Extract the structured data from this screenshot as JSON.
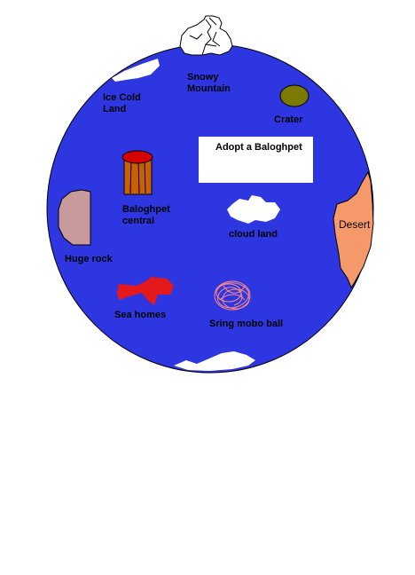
{
  "map": {
    "colors": {
      "ocean": "#2d36e0",
      "outline": "#000000",
      "snow": "#ffffff",
      "desert": "#f5996a",
      "crater": "#7b7a05",
      "rock": "#c99a9b",
      "barrel_top": "#d60000",
      "barrel_body": "#c85f0a",
      "sea_homes": "#e5191b",
      "ball": "#ff8a82"
    },
    "locations": [
      {
        "id": "snowy",
        "label_lines": [
          "Snowy",
          "Mountain"
        ]
      },
      {
        "id": "icecold",
        "label_lines": [
          "Ice Cold",
          "Land"
        ]
      },
      {
        "id": "crater",
        "label_lines": [
          "Crater"
        ]
      },
      {
        "id": "central",
        "label_lines": [
          "Baloghpet",
          "central"
        ]
      },
      {
        "id": "cloud",
        "label_lines": [
          "cloud land"
        ]
      },
      {
        "id": "desert",
        "label_lines": [
          "Desert"
        ]
      },
      {
        "id": "rock",
        "label_lines": [
          "Huge rock"
        ]
      },
      {
        "id": "sea",
        "label_lines": [
          "Sea homes"
        ]
      },
      {
        "id": "ball",
        "label_lines": [
          "Sring mobo ball"
        ]
      }
    ],
    "adopt_label": "Adopt a Baloghpet"
  }
}
